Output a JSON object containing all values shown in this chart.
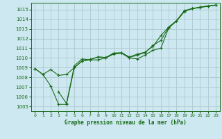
{
  "title": "Graphe pression niveau de la mer (hPa)",
  "bg_color": "#cde8f0",
  "grid_color": "#b0c8d0",
  "line_color": "#1a6b1a",
  "xlim": [
    -0.5,
    23.5
  ],
  "ylim": [
    1004.5,
    1015.7
  ],
  "xticks": [
    0,
    1,
    2,
    3,
    4,
    5,
    6,
    7,
    8,
    9,
    10,
    11,
    12,
    13,
    14,
    15,
    16,
    17,
    18,
    19,
    20,
    21,
    22,
    23
  ],
  "yticks": [
    1005,
    1006,
    1007,
    1008,
    1009,
    1010,
    1011,
    1012,
    1013,
    1014,
    1015
  ],
  "series": [
    [
      1008.9,
      1008.3,
      1007.1,
      1005.2,
      1005.2,
      1009.0,
      1009.7,
      1009.8,
      1009.8,
      1010.0,
      1010.4,
      1010.5,
      1010.0,
      1009.9,
      1010.3,
      1010.8,
      1011.0,
      1013.1,
      1013.8,
      1014.8,
      1015.1,
      1015.2,
      1015.35,
      1015.45
    ],
    [
      1008.9,
      1008.3,
      1008.8,
      1008.2,
      1008.3,
      1009.0,
      1009.7,
      1009.85,
      1010.1,
      1010.05,
      1010.45,
      1010.5,
      1010.05,
      1010.3,
      1010.55,
      1011.3,
      1011.8,
      1013.15,
      1013.85,
      1014.85,
      1015.1,
      1015.25,
      1015.37,
      1015.47
    ],
    [
      1008.9,
      null,
      null,
      1006.5,
      1005.3,
      1009.2,
      1009.9,
      1009.8,
      1010.1,
      1010.05,
      1010.5,
      1010.55,
      1010.1,
      1010.4,
      1010.6,
      1011.2,
      1012.3,
      1013.2,
      1013.85,
      1014.9,
      1015.1,
      1015.25,
      1015.37,
      1015.47
    ],
    [
      1008.9,
      null,
      null,
      null,
      null,
      null,
      null,
      null,
      null,
      null,
      null,
      null,
      null,
      null,
      null,
      null,
      null,
      null,
      null,
      null,
      null,
      null,
      null,
      1015.47
    ]
  ]
}
